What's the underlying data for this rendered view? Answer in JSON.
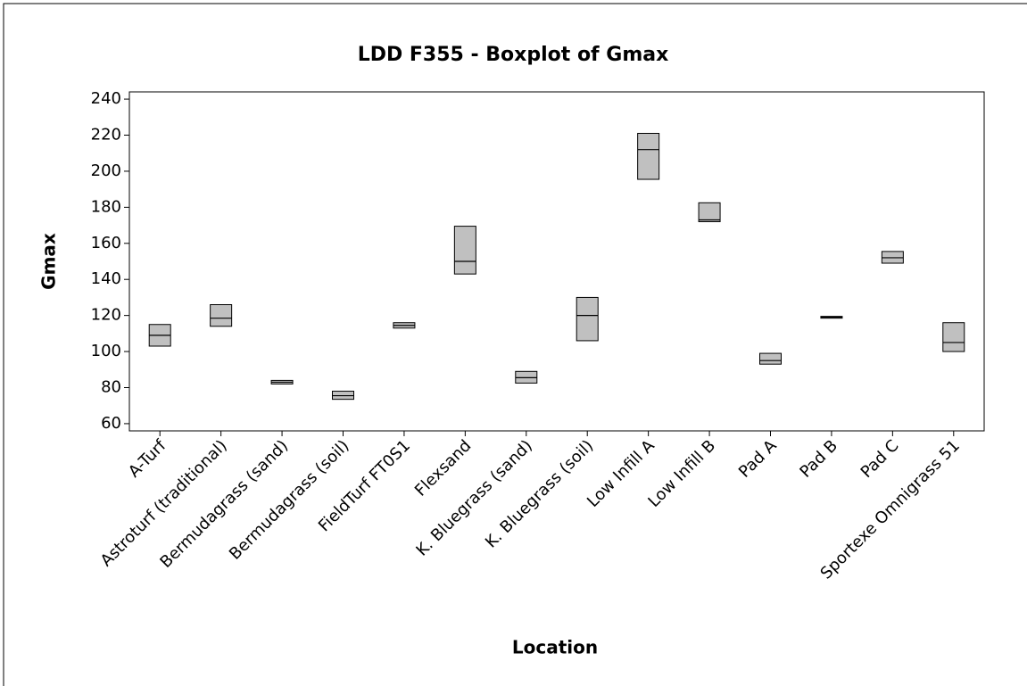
{
  "chart_data": {
    "type": "box",
    "title": "LDD F355 - Boxplot of Gmax",
    "x_label": "Location",
    "y_label": "Gmax",
    "categories": [
      "A-Turf",
      "Astroturf (traditional)",
      "Bermudagrass (sand)",
      "Bermudagrass (soil)",
      "FieldTurf FT0S1",
      "Flexsand",
      "K. Bluegrass (sand)",
      "K. Bluegrass (soil)",
      "Low Infill A",
      "Low Infill B",
      "Pad A",
      "Pad B",
      "Pad C",
      "Sportexe Omnigrass 51"
    ],
    "q1": [
      103,
      114,
      82,
      73.5,
      113,
      143,
      82.5,
      106,
      195.5,
      172,
      93,
      118.5,
      149,
      100
    ],
    "median": [
      109,
      118.5,
      83,
      75.5,
      114.5,
      150,
      85.5,
      120,
      212,
      173,
      95,
      119,
      152,
      105
    ],
    "q3": [
      115,
      126,
      84,
      78,
      116,
      169.5,
      89,
      130,
      221,
      182.5,
      99,
      119.5,
      155.5,
      116
    ],
    "color": "#c0c0c0",
    "ylim": [
      56,
      244
    ],
    "yticks": [
      60,
      80,
      100,
      120,
      140,
      160,
      180,
      200,
      220,
      240
    ]
  }
}
